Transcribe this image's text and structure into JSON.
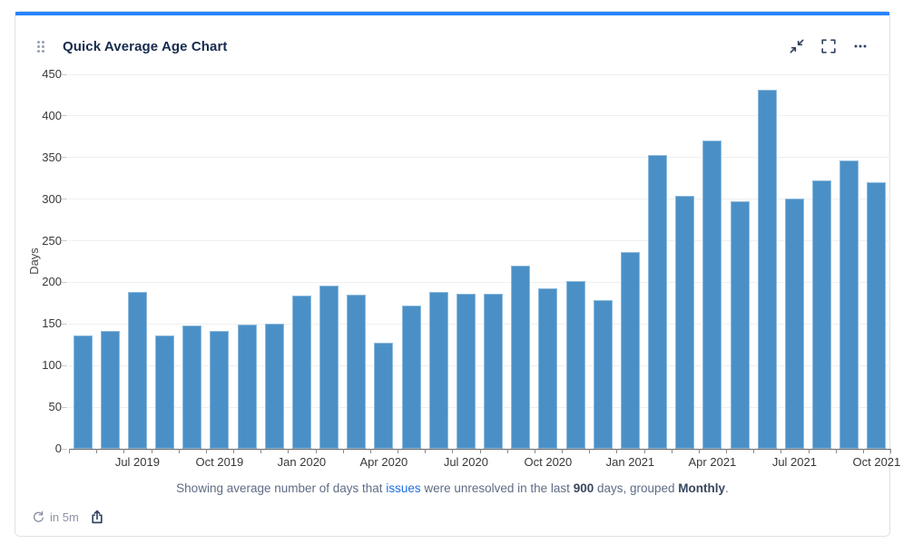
{
  "header": {
    "title": "Quick Average Age Chart",
    "icons": {
      "drag_handle": "drag-handle-dots",
      "collapse": "arrows-pointing-inward",
      "fullscreen": "corner-brackets",
      "more": "ellipsis-dots"
    }
  },
  "chart_data": {
    "type": "bar",
    "title": "Quick Average Age Chart",
    "ylabel": "Days",
    "xlabel": "",
    "ylim": [
      0,
      450
    ],
    "yticks": [
      0,
      50,
      100,
      150,
      200,
      250,
      300,
      350,
      400,
      450
    ],
    "grid": true,
    "legend_position": "none",
    "categories": [
      "May 2019",
      "Jun 2019",
      "Jul 2019",
      "Aug 2019",
      "Sep 2019",
      "Oct 2019",
      "Nov 2019",
      "Dec 2019",
      "Jan 2020",
      "Feb 2020",
      "Mar 2020",
      "Apr 2020",
      "May 2020",
      "Jun 2020",
      "Jul 2020",
      "Aug 2020",
      "Sep 2020",
      "Oct 2020",
      "Nov 2020",
      "Dec 2020",
      "Jan 2021",
      "Feb 2021",
      "Mar 2021",
      "Apr 2021",
      "May 2021",
      "Jun 2021",
      "Jul 2021",
      "Aug 2021",
      "Sep 2021",
      "Oct 2021"
    ],
    "values": [
      136,
      142,
      189,
      136,
      148,
      142,
      149,
      150,
      184,
      196,
      185,
      127,
      172,
      188,
      186,
      186,
      220,
      193,
      202,
      179,
      236,
      353,
      304,
      371,
      297,
      432,
      301,
      322,
      346,
      320
    ],
    "x_tick_labels_shown": [
      "Jul 2019",
      "Oct 2019",
      "Jan 2020",
      "Apr 2020",
      "Jul 2020",
      "Oct 2020",
      "Jan 2021",
      "Apr 2021",
      "Jul 2021",
      "Oct 2021"
    ],
    "bar_color": "#4a90c7"
  },
  "footer": {
    "text_before_link": "Showing average number of days that ",
    "link_text": "issues",
    "text_middle": " were unresolved in the last ",
    "bold_days": "900",
    "text_after_days": " days, grouped ",
    "bold_group": "Monthly",
    "text_end": "."
  },
  "status_bar": {
    "refresh_label": "in 5m",
    "icons": {
      "refresh": "circular-arrow",
      "share": "box-with-up-arrow"
    }
  },
  "colors": {
    "accent_top": "#2684ff",
    "bar": "#4a90c7",
    "title_text": "#172b4d",
    "icon": "#344563",
    "link": "#1d6fe0",
    "caption_text": "#5e6c84"
  }
}
